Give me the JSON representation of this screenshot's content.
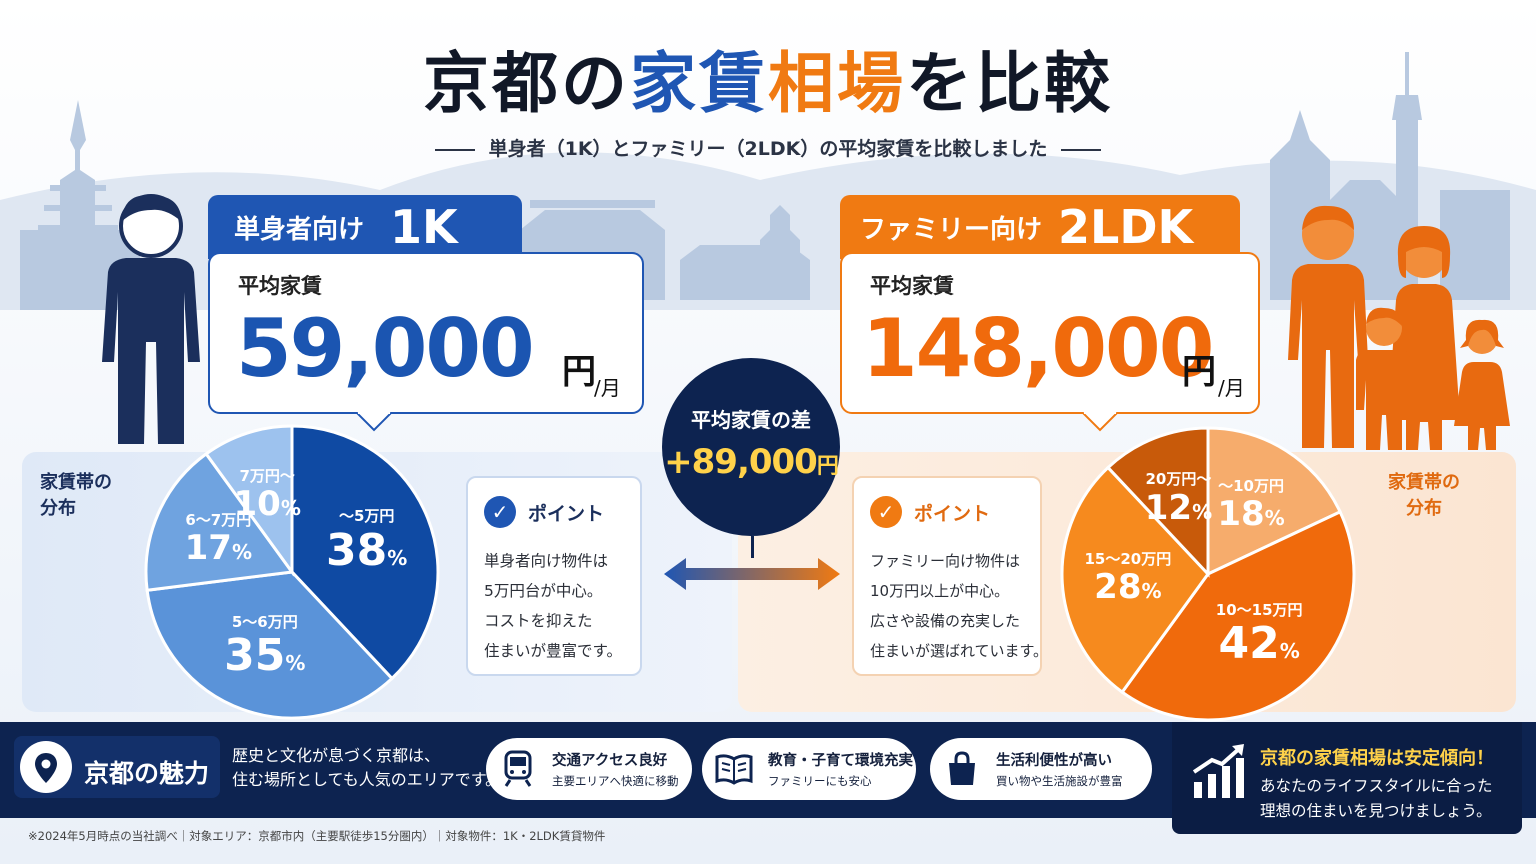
{
  "title": {
    "part1": "京都の",
    "part2": "家賃",
    "part3": "相場",
    "part4": "を比較"
  },
  "subtitle": "単身者（1K）とファミリー（2LDK）の平均家賃を比較しました",
  "colors": {
    "blue": "#1f56b3",
    "orange": "#f07a12",
    "navy": "#0d2350",
    "gold": "#ffd24a"
  },
  "single": {
    "tag_small": "単身者向け",
    "tag_big": "1K",
    "avg_label": "平均家賃",
    "amount": "59,000",
    "yen": "円",
    "per": "/月",
    "dist_label_line1": "家賃帯の",
    "dist_label_line2": "分布",
    "point_title": "ポイント",
    "point_lines": [
      "単身者向け物件は",
      "5万円台が中心。",
      "コストを抑えた",
      "住まいが豊富です。"
    ]
  },
  "family": {
    "tag_small": "ファミリー向け",
    "tag_big": "2LDK",
    "avg_label": "平均家賃",
    "amount": "148,000",
    "yen": "円",
    "per": "/月",
    "dist_label_line1": "家賃帯の",
    "dist_label_line2": "分布",
    "point_title": "ポイント",
    "point_lines": [
      "ファミリー向け物件は",
      "10万円以上が中心。",
      "広さや設備の充実した",
      "住まいが選ばれています。"
    ]
  },
  "difference": {
    "label": "平均家賃の差",
    "value": "+89,000",
    "unit": "円"
  },
  "chart_data": [
    {
      "type": "pie",
      "slices": [
        {
          "label": "～5万円",
          "value": 38,
          "color": "#0f4aa3"
        },
        {
          "label": "5～6万円",
          "value": 35,
          "color": "#5a93d9"
        },
        {
          "label": "6～7万円",
          "value": 17,
          "color": "#6fa3e0"
        },
        {
          "label": "7万円～",
          "value": 10,
          "color": "#9dc2ee"
        }
      ],
      "unit": "%"
    },
    {
      "type": "pie",
      "slices": [
        {
          "label": "～10万円",
          "value": 18,
          "color": "#f6ac6c"
        },
        {
          "label": "10～15万円",
          "value": 42,
          "color": "#f06a0c"
        },
        {
          "label": "15～20万円",
          "value": 28,
          "color": "#f68a1e"
        },
        {
          "label": "20万円～",
          "value": 12,
          "color": "#c85a0a"
        }
      ],
      "unit": "%"
    }
  ],
  "charm": {
    "title": "京都の魅力",
    "desc_line1": "歴史と文化が息づく京都は、",
    "desc_line2": "住む場所としても人気のエリアです。",
    "features": [
      {
        "icon": "train-icon",
        "title": "交通アクセス良好",
        "sub": "主要エリアへ快適に移動"
      },
      {
        "icon": "book-icon",
        "title": "教育・子育て環境充実",
        "sub": "ファミリーにも安心"
      },
      {
        "icon": "shopping-bag-icon",
        "title": "生活利便性が高い",
        "sub": "買い物や生活施設が豊富"
      }
    ]
  },
  "cta": {
    "headline": "京都の家賃相場は安定傾向！",
    "line1": "あなたのライフスタイルに合った",
    "line2": "理想の住まいを見つけましょう。"
  },
  "footnote": "※2024年5月時点の当社調べ｜対象エリア：京都市内（主要駅徒歩15分圏内）｜対象物件：1K・2LDK賃貸物件"
}
